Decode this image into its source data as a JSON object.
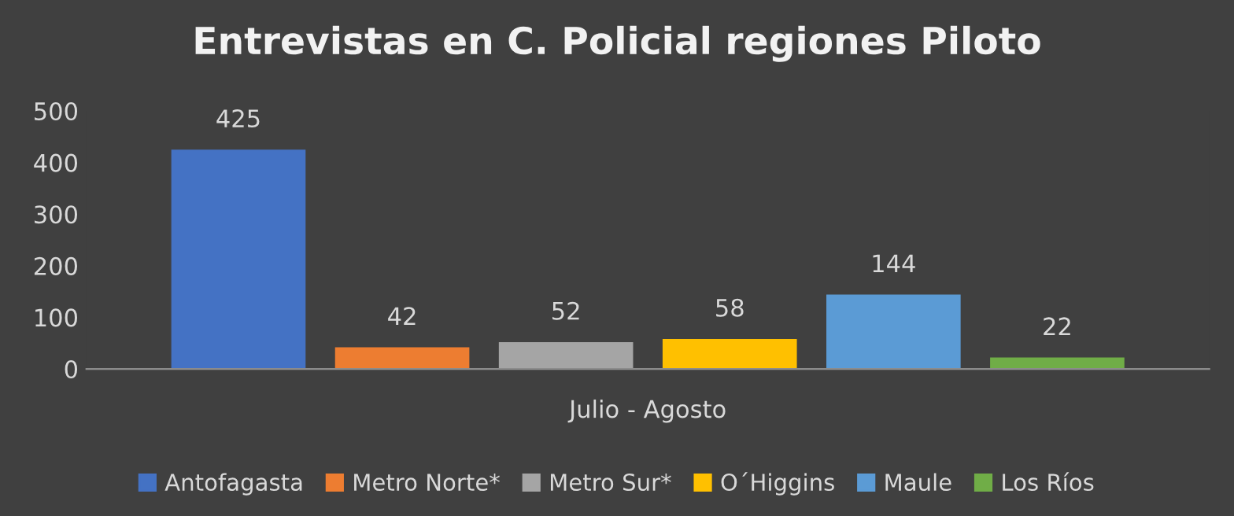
{
  "chart_data": {
    "type": "bar",
    "title": "Entrevistas en C. Policial regiones Piloto",
    "categories": [
      "Julio - Agosto"
    ],
    "series": [
      {
        "name": "Antofagasta",
        "color": "#4472c4",
        "values": [
          425
        ]
      },
      {
        "name": "Metro Norte*",
        "color": "#ed7d31",
        "values": [
          42
        ]
      },
      {
        "name": "Metro Sur*",
        "color": "#a5a5a5",
        "values": [
          52
        ]
      },
      {
        "name": "O´Higgins",
        "color": "#ffc000",
        "values": [
          58
        ]
      },
      {
        "name": "Maule",
        "color": "#5b9bd5",
        "values": [
          144
        ]
      },
      {
        "name": "Los Ríos",
        "color": "#70ad47",
        "values": [
          22
        ]
      }
    ],
    "ylim": [
      0,
      500
    ],
    "yticks": [
      0,
      100,
      200,
      300,
      400,
      500
    ],
    "data_labels": true,
    "legend": "bottom",
    "grid": false
  }
}
